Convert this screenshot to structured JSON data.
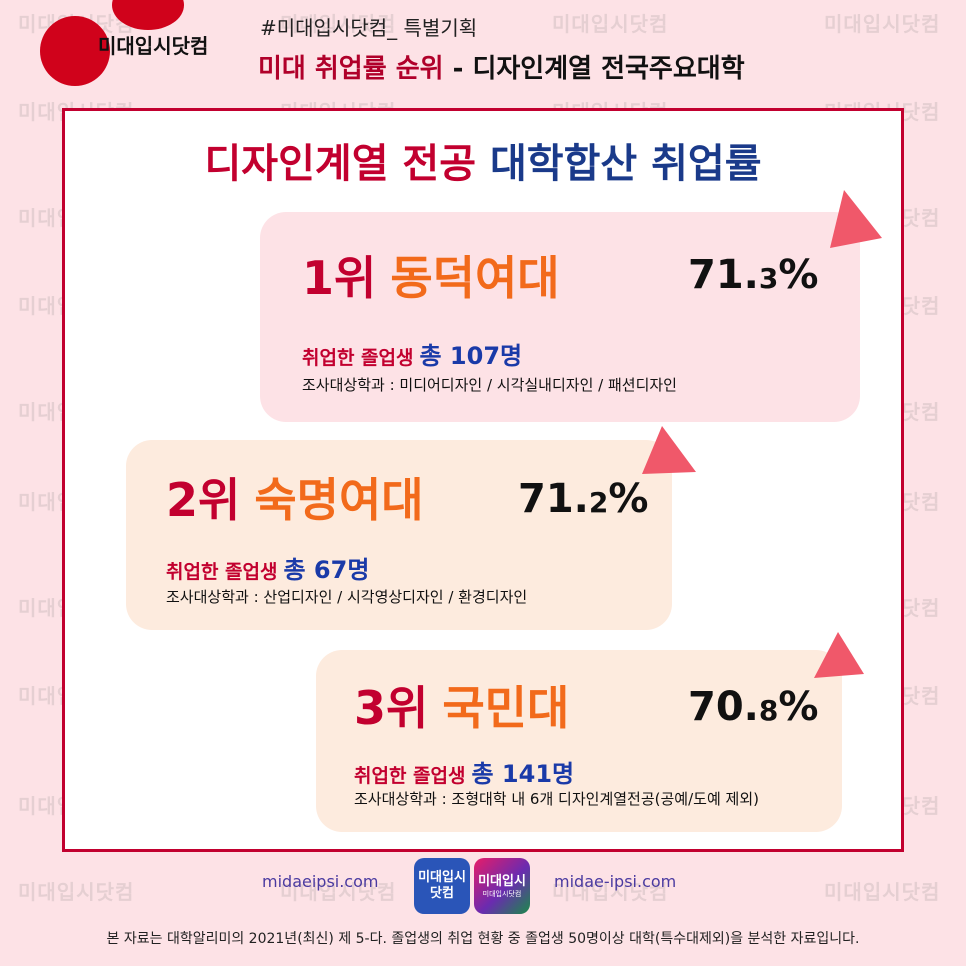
{
  "watermark": "미대입시닷컴",
  "header": {
    "logo_text": "미대입시닷컴",
    "hashtag": "#미대입시닷컴_ 특별기획",
    "title_red": "미대 취업률 순위",
    "title_rest": " - 디자인계열 전국주요대학"
  },
  "frame": {
    "title_red": "디자인계열 전공",
    "title_blue": "대학합산 취업률"
  },
  "ranks": [
    {
      "rank": "1위",
      "school": "동덕여대",
      "pct_main": "71.",
      "pct_decimal": "3",
      "pct_unit": "%",
      "grads_label": "취업한 졸업생",
      "grads_total": "총 107명",
      "depts": "조사대상학과 : 미디어디자인 / 시각실내디자인 / 패션디자인"
    },
    {
      "rank": "2위",
      "school": "숙명여대",
      "pct_main": "71.",
      "pct_decimal": "2",
      "pct_unit": "%",
      "grads_label": "취업한 졸업생",
      "grads_total": "총 67명",
      "depts": "조사대상학과 : 산업디자인 / 시각영상디자인 / 환경디자인"
    },
    {
      "rank": "3위",
      "school": "국민대",
      "pct_main": "70.",
      "pct_decimal": "8",
      "pct_unit": "%",
      "grads_label": "취업한 졸업생",
      "grads_total": "총 141명",
      "depts": "조사대상학과 : 조형대학 내 6개 디자인계열전공(공예/도예 제외)"
    }
  ],
  "footer": {
    "site_left": "midaeipsi.com",
    "site_right": "midae-ipsi.com",
    "app1_line1": "미대입시",
    "app1_line2": "닷컴",
    "app2_line1": "미대입시",
    "app2_line2": "미대입시닷컴",
    "note": "본 자료는 대학알리미의 2021년(최신) 제 5-다. 졸업생의 취업 현황 중 졸업생 50명이상 대학(특수대제외)을 분석한 자료입니다."
  },
  "colors": {
    "background": "#fde2e6",
    "accent_red": "#c2002f",
    "accent_orange": "#f26a1b",
    "accent_blue": "#1a3aa8",
    "triangle": "#f0586a"
  }
}
